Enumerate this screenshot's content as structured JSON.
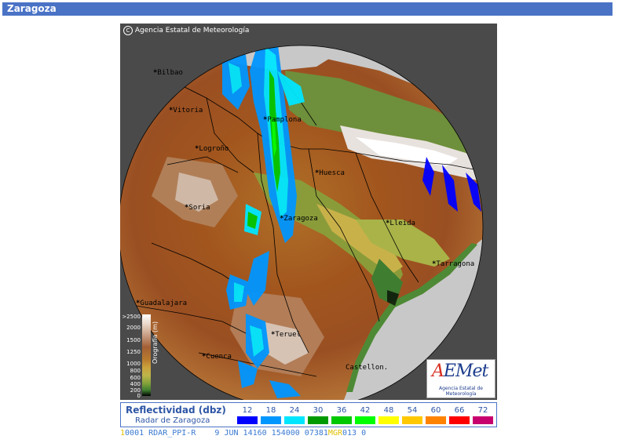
{
  "window": {
    "title": "Zaragoza"
  },
  "map": {
    "copyright": "Agencia Estatal de Meteorología",
    "copyright_symbol": "C",
    "cities": [
      {
        "name": "Bilbao",
        "label": "Bilbao"
      },
      {
        "name": "Vitoria",
        "label": "Vitoria"
      },
      {
        "name": "Logrono",
        "label": "Logroño"
      },
      {
        "name": "Pamplona",
        "label": "Pamplona"
      },
      {
        "name": "Huesca",
        "label": "Huesca"
      },
      {
        "name": "Soria",
        "label": "Soria"
      },
      {
        "name": "Zaragoza",
        "label": "Zaragoza"
      },
      {
        "name": "Lleida",
        "label": "Lleida"
      },
      {
        "name": "Tarragona",
        "label": "Tarragona"
      },
      {
        "name": "Guadalajara",
        "label": "Guadalajara"
      },
      {
        "name": "Teruel",
        "label": "Teruel"
      },
      {
        "name": "Cuenca",
        "label": "Cuenca"
      },
      {
        "name": "Castellon",
        "label": "Castellon."
      }
    ],
    "orography_scale": {
      "title": "Orografía (m)",
      "labels": [
        ">2500",
        "2000",
        "1500",
        "1250",
        "1000",
        "800",
        "600",
        "400",
        "200",
        "0"
      ]
    },
    "logo": {
      "main_a": "A",
      "main_rest": "EMet",
      "sub": "Agencia Estatal de Meteorología"
    }
  },
  "legend": {
    "title": "Reflectividad (dbz)",
    "subtitle": "Radar de Zaragoza",
    "levels": [
      {
        "value": "12",
        "color": "#0000ff"
      },
      {
        "value": "18",
        "color": "#0096ff"
      },
      {
        "value": "24",
        "color": "#00e6ff"
      },
      {
        "value": "30",
        "color": "#009a00"
      },
      {
        "value": "36",
        "color": "#00c800"
      },
      {
        "value": "42",
        "color": "#00ff00"
      },
      {
        "value": "48",
        "color": "#ffff00"
      },
      {
        "value": "54",
        "color": "#ffc800"
      },
      {
        "value": "60",
        "color": "#ff8200"
      },
      {
        "value": "66",
        "color": "#ff0000"
      },
      {
        "value": "72",
        "color": "#c8006e"
      }
    ]
  },
  "status": {
    "prefix": "1",
    "text": "0001 RDAR_PPI-R    9 JUN 14160 154000 07381",
    "highlight": "MGR",
    "suffix": "013 0"
  }
}
